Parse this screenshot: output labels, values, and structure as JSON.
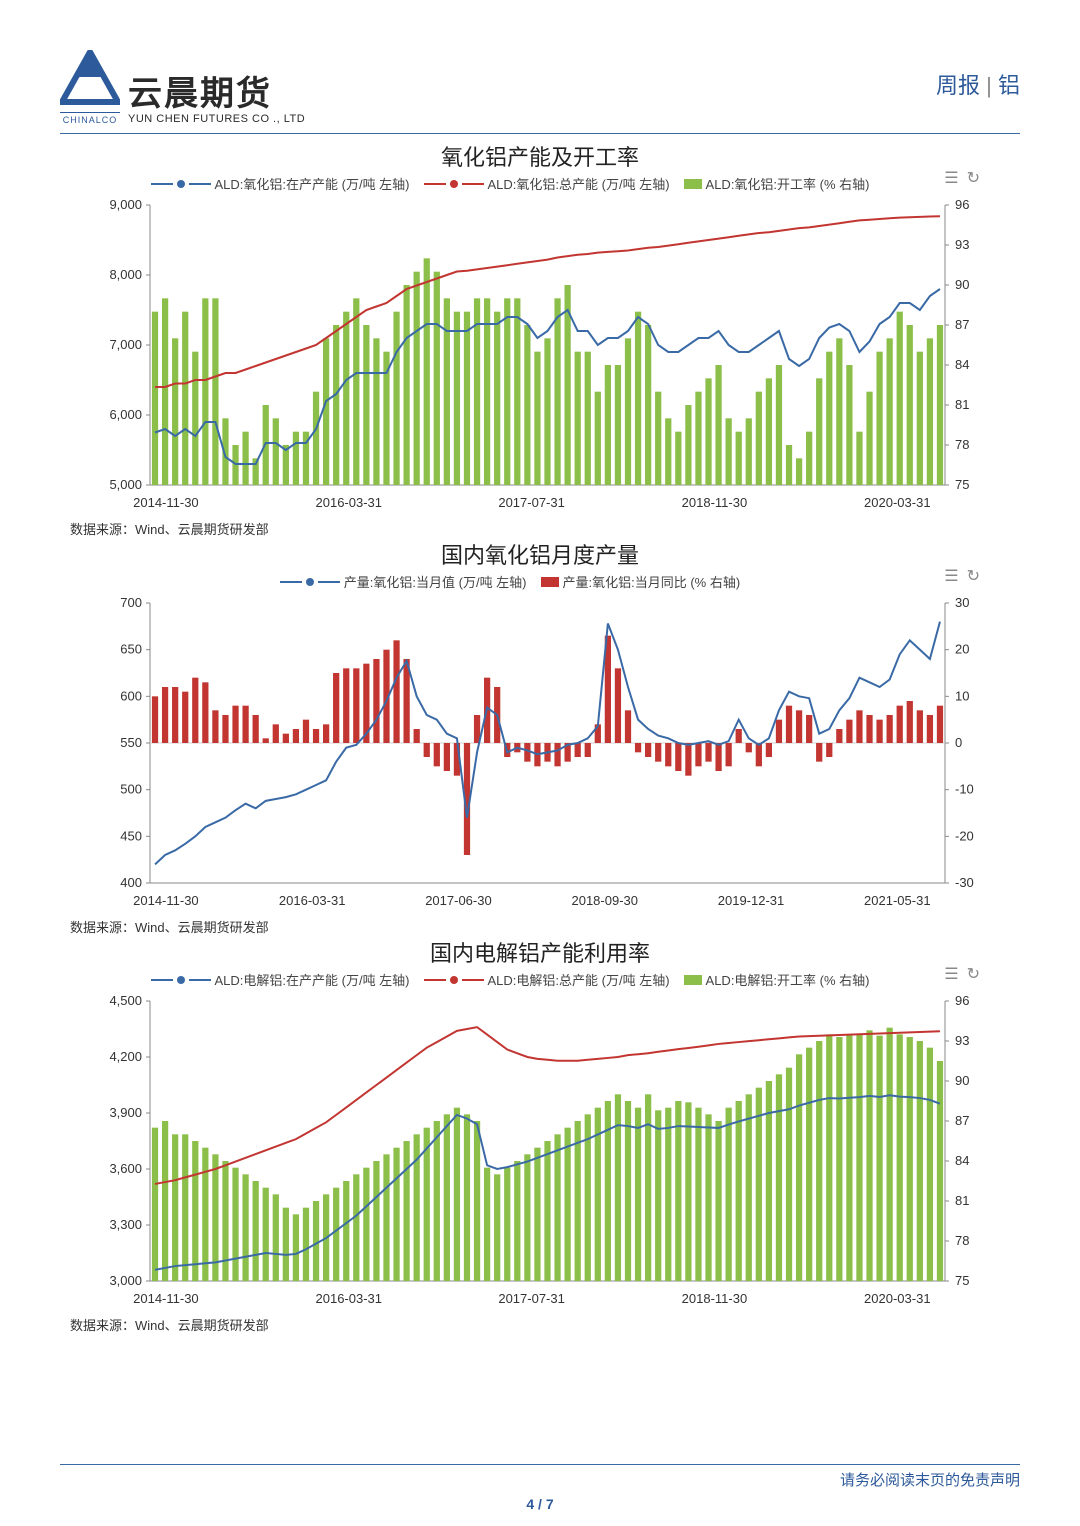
{
  "header": {
    "logo_cn": "云晨期货",
    "logo_en": "YUN CHEN FUTURES CO ., LTD",
    "logo_brand": "CHINALCO",
    "report_type": "周报",
    "report_topic": "铝"
  },
  "footer": {
    "disclaimer": "请务必阅读末页的免责声明",
    "page": "4",
    "total": "7"
  },
  "source_label": "数据来源：Wind、云晨期货研发部",
  "colors": {
    "blue": "#3a6aa6",
    "red": "#c23531",
    "green": "#8cbf4a",
    "grid": "#d0d0d0",
    "axis": "#888888",
    "text": "#333333",
    "bg": "#ffffff"
  },
  "chart1": {
    "title": "氧化铝产能及开工率",
    "legend": [
      {
        "type": "line-dot",
        "color": "#3a6aa6",
        "label": "ALD:氧化铝:在产产能 (万/吨 左轴)"
      },
      {
        "type": "line-dot",
        "color": "#c23531",
        "label": "ALD:氧化铝:总产能 (万/吨 左轴)"
      },
      {
        "type": "bar",
        "color": "#8cbf4a",
        "label": "ALD:氧化铝:开工率 (% 右轴)"
      }
    ],
    "x_ticks": [
      "2014-11-30",
      "2016-03-31",
      "2017-07-31",
      "2018-11-30",
      "2020-03-31"
    ],
    "y_left": {
      "min": 5000,
      "max": 9000,
      "step": 1000,
      "fmt": "comma"
    },
    "y_right": {
      "min": 75,
      "max": 96,
      "step": 3
    },
    "bars_pct": [
      88,
      89,
      86,
      88,
      85,
      89,
      89,
      80,
      78,
      79,
      77,
      81,
      80,
      78,
      79,
      79,
      82,
      86,
      87,
      88,
      89,
      87,
      86,
      85,
      88,
      90,
      91,
      92,
      91,
      89,
      88,
      88,
      89,
      89,
      88,
      89,
      89,
      87,
      85,
      86,
      89,
      90,
      85,
      85,
      82,
      84,
      84,
      86,
      88,
      87,
      82,
      80,
      79,
      81,
      82,
      83,
      84,
      80,
      79,
      80,
      82,
      83,
      84,
      78,
      77,
      79,
      83,
      85,
      86,
      84,
      79,
      82,
      85,
      86,
      88,
      87,
      85,
      86,
      87
    ],
    "blue": [
      5750,
      5800,
      5700,
      5800,
      5700,
      5900,
      5900,
      5400,
      5300,
      5300,
      5300,
      5600,
      5600,
      5500,
      5600,
      5600,
      5800,
      6200,
      6300,
      6500,
      6600,
      6600,
      6600,
      6600,
      6900,
      7100,
      7200,
      7300,
      7300,
      7200,
      7200,
      7200,
      7300,
      7300,
      7300,
      7400,
      7400,
      7300,
      7100,
      7200,
      7400,
      7500,
      7200,
      7200,
      7000,
      7100,
      7100,
      7200,
      7400,
      7300,
      7000,
      6900,
      6900,
      7000,
      7100,
      7100,
      7200,
      7000,
      6900,
      6900,
      7000,
      7100,
      7200,
      6800,
      6700,
      6800,
      7100,
      7250,
      7300,
      7200,
      6900,
      7050,
      7300,
      7400,
      7600,
      7600,
      7500,
      7700,
      7800
    ],
    "red": [
      6400,
      6400,
      6450,
      6450,
      6500,
      6500,
      6550,
      6600,
      6600,
      6650,
      6700,
      6750,
      6800,
      6850,
      6900,
      6950,
      7000,
      7100,
      7200,
      7300,
      7400,
      7500,
      7550,
      7600,
      7700,
      7800,
      7850,
      7900,
      7950,
      8000,
      8050,
      8060,
      8080,
      8100,
      8120,
      8140,
      8160,
      8180,
      8200,
      8220,
      8250,
      8270,
      8290,
      8300,
      8320,
      8330,
      8340,
      8350,
      8370,
      8390,
      8400,
      8420,
      8440,
      8460,
      8480,
      8500,
      8520,
      8540,
      8560,
      8580,
      8600,
      8610,
      8630,
      8650,
      8670,
      8680,
      8700,
      8720,
      8740,
      8760,
      8780,
      8790,
      8800,
      8810,
      8820,
      8825,
      8830,
      8835,
      8840
    ]
  },
  "chart2": {
    "title": "国内氧化铝月度产量",
    "legend": [
      {
        "type": "line-dot",
        "color": "#3a6aa6",
        "label": "产量:氧化铝:当月值 (万/吨 左轴)"
      },
      {
        "type": "bar",
        "color": "#c23531",
        "label": "产量:氧化铝:当月同比 (% 右轴)"
      }
    ],
    "x_ticks": [
      "2014-11-30",
      "2016-03-31",
      "2017-06-30",
      "2018-09-30",
      "2019-12-31",
      "2021-05-31"
    ],
    "y_left": {
      "min": 400,
      "max": 700,
      "step": 50
    },
    "y_right": {
      "min": -30,
      "max": 30,
      "step": 10
    },
    "bars_pct": [
      10,
      12,
      12,
      11,
      14,
      13,
      7,
      6,
      8,
      8,
      6,
      1,
      4,
      2,
      3,
      5,
      3,
      4,
      15,
      16,
      16,
      17,
      18,
      20,
      22,
      18,
      3,
      -3,
      -5,
      -6,
      -7,
      -24,
      6,
      14,
      12,
      -3,
      -2,
      -4,
      -5,
      -4,
      -5,
      -4,
      -3,
      -3,
      4,
      23,
      16,
      7,
      -2,
      -3,
      -4,
      -5,
      -6,
      -7,
      -5,
      -4,
      -6,
      -5,
      3,
      -2,
      -5,
      -3,
      5,
      8,
      7,
      6,
      -4,
      -3,
      3,
      5,
      7,
      6,
      5,
      6,
      8,
      9,
      7,
      6,
      8
    ],
    "blue": [
      420,
      430,
      435,
      442,
      450,
      460,
      465,
      470,
      478,
      485,
      480,
      488,
      490,
      492,
      495,
      500,
      505,
      510,
      530,
      545,
      548,
      560,
      575,
      595,
      620,
      638,
      600,
      580,
      575,
      560,
      555,
      470,
      540,
      588,
      580,
      540,
      545,
      542,
      538,
      540,
      542,
      548,
      550,
      555,
      568,
      678,
      650,
      610,
      575,
      565,
      558,
      555,
      550,
      548,
      550,
      552,
      548,
      552,
      575,
      555,
      548,
      555,
      585,
      605,
      600,
      598,
      560,
      565,
      585,
      598,
      620,
      615,
      610,
      618,
      645,
      660,
      650,
      640,
      680
    ]
  },
  "chart3": {
    "title": "国内电解铝产能利用率",
    "legend": [
      {
        "type": "line-dot",
        "color": "#3a6aa6",
        "label": "ALD:电解铝:在产产能 (万/吨 左轴)"
      },
      {
        "type": "line-dot",
        "color": "#c23531",
        "label": "ALD:电解铝:总产能 (万/吨 左轴)"
      },
      {
        "type": "bar",
        "color": "#8cbf4a",
        "label": "ALD:电解铝:开工率 (% 右轴)"
      }
    ],
    "x_ticks": [
      "2014-11-30",
      "2016-03-31",
      "2017-07-31",
      "2018-11-30",
      "2020-03-31"
    ],
    "y_left": {
      "min": 3000,
      "max": 4500,
      "step": 300,
      "fmt": "comma"
    },
    "y_right": {
      "min": 75,
      "max": 96,
      "step": 3
    },
    "bars_pct": [
      86.5,
      87,
      86,
      86,
      85.5,
      85,
      84.5,
      84,
      83.5,
      83,
      82.5,
      82,
      81.5,
      80.5,
      80,
      80.5,
      81,
      81.5,
      82,
      82.5,
      83,
      83.5,
      84,
      84.5,
      85,
      85.5,
      86,
      86.5,
      87,
      87.5,
      88,
      87.5,
      87,
      83.5,
      83,
      83.5,
      84,
      84.5,
      85,
      85.5,
      86,
      86.5,
      87,
      87.5,
      88,
      88.5,
      89,
      88.5,
      88,
      89,
      87.8,
      88,
      88.5,
      88.4,
      88,
      87.5,
      87,
      88,
      88.5,
      89,
      89.5,
      90,
      90.5,
      91,
      92,
      92.5,
      93,
      93.5,
      93.3,
      93.5,
      93.5,
      93.8,
      93.4,
      94,
      93.5,
      93.3,
      93,
      92.5,
      91.5
    ],
    "blue": [
      3060,
      3070,
      3080,
      3085,
      3090,
      3095,
      3100,
      3110,
      3120,
      3130,
      3140,
      3150,
      3145,
      3140,
      3145,
      3170,
      3200,
      3230,
      3270,
      3310,
      3350,
      3400,
      3450,
      3500,
      3550,
      3600,
      3650,
      3710,
      3770,
      3830,
      3890,
      3870,
      3840,
      3620,
      3600,
      3610,
      3625,
      3640,
      3660,
      3680,
      3700,
      3720,
      3740,
      3760,
      3785,
      3810,
      3835,
      3830,
      3820,
      3840,
      3815,
      3820,
      3830,
      3828,
      3825,
      3822,
      3820,
      3838,
      3855,
      3870,
      3885,
      3900,
      3910,
      3920,
      3940,
      3955,
      3970,
      3980,
      3978,
      3982,
      3985,
      3992,
      3986,
      3995,
      3988,
      3985,
      3980,
      3970,
      3950
    ],
    "red": [
      3520,
      3530,
      3540,
      3555,
      3570,
      3585,
      3600,
      3620,
      3640,
      3660,
      3680,
      3700,
      3720,
      3740,
      3760,
      3790,
      3820,
      3850,
      3890,
      3930,
      3970,
      4010,
      4050,
      4090,
      4130,
      4170,
      4210,
      4250,
      4280,
      4310,
      4340,
      4350,
      4360,
      4320,
      4280,
      4240,
      4220,
      4200,
      4190,
      4185,
      4180,
      4180,
      4180,
      4185,
      4190,
      4195,
      4200,
      4210,
      4215,
      4220,
      4228,
      4235,
      4242,
      4248,
      4255,
      4262,
      4270,
      4275,
      4280,
      4285,
      4290,
      4295,
      4300,
      4305,
      4310,
      4312,
      4314,
      4316,
      4318,
      4320,
      4322,
      4324,
      4326,
      4328,
      4330,
      4332,
      4334,
      4336,
      4338
    ]
  }
}
